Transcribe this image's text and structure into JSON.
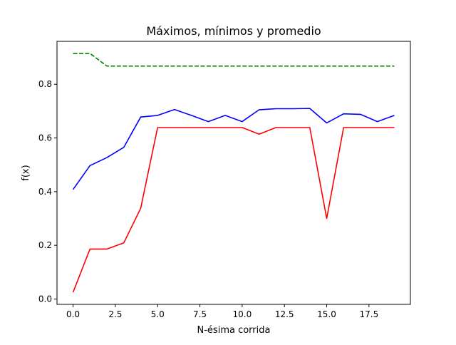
{
  "chart_data": {
    "type": "line",
    "title": "Máximos, mínimos y promedio",
    "xlabel": "N-ésima corrida",
    "ylabel": "f(x)",
    "xlim": [
      -0.95,
      19.95
    ],
    "ylim": [
      -0.02,
      0.96
    ],
    "x_ticks": [
      0,
      2.5,
      5,
      7.5,
      10,
      12.5,
      15,
      17.5
    ],
    "x_tick_labels": [
      "0.0",
      "2.5",
      "5.0",
      "7.5",
      "10.0",
      "12.5",
      "15.0",
      "17.5"
    ],
    "y_ticks": [
      0,
      0.2,
      0.4,
      0.6,
      0.8
    ],
    "y_tick_labels": [
      "0.0",
      "0.2",
      "0.4",
      "0.6",
      "0.8"
    ],
    "grid": false,
    "legend": false,
    "x": [
      0,
      1,
      2,
      3,
      4,
      5,
      6,
      7,
      8,
      9,
      10,
      11,
      12,
      13,
      14,
      15,
      16,
      17,
      18,
      19
    ],
    "series": [
      {
        "color": "#008000",
        "dash": "dashed",
        "values": [
          0.915,
          0.915,
          0.868,
          0.868,
          0.868,
          0.868,
          0.868,
          0.868,
          0.868,
          0.868,
          0.868,
          0.868,
          0.868,
          0.868,
          0.868,
          0.868,
          0.868,
          0.868,
          0.868,
          0.868
        ]
      },
      {
        "color": "#0000ff",
        "dash": "solid",
        "values": [
          0.408,
          0.497,
          0.527,
          0.565,
          0.678,
          0.684,
          0.706,
          0.684,
          0.661,
          0.684,
          0.661,
          0.705,
          0.709,
          0.709,
          0.71,
          0.656,
          0.69,
          0.688,
          0.661,
          0.684
        ]
      },
      {
        "color": "#ff0000",
        "dash": "solid",
        "values": [
          0.025,
          0.186,
          0.186,
          0.209,
          0.338,
          0.639,
          0.639,
          0.639,
          0.639,
          0.639,
          0.639,
          0.614,
          0.639,
          0.639,
          0.639,
          0.3,
          0.639,
          0.639,
          0.639,
          0.639
        ]
      }
    ]
  }
}
